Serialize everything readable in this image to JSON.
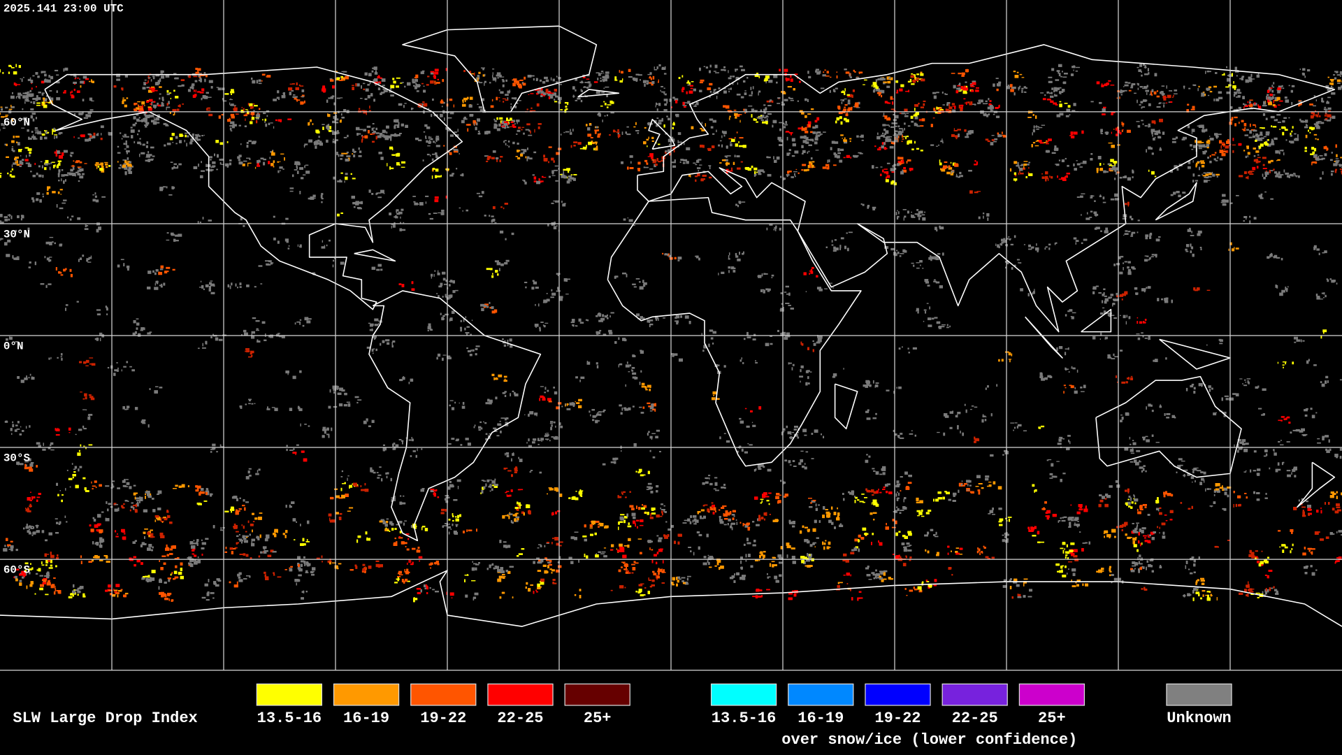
{
  "timestamp": "2025.141 23:00 UTC",
  "latitude_labels": [
    "60°N",
    "30°N",
    "0°N",
    "30°S",
    "60°S"
  ],
  "legend": {
    "title": "SLW Large Drop Index",
    "groups": [
      {
        "items": [
          {
            "label": "13.5-16",
            "color": "#ffff00"
          },
          {
            "label": "16-19",
            "color": "#ff9900"
          },
          {
            "label": "19-22",
            "color": "#ff5500"
          },
          {
            "label": "22-25",
            "color": "#ff0000"
          },
          {
            "label": "25+",
            "color": "#660000"
          }
        ]
      },
      {
        "items": [
          {
            "label": "13.5-16",
            "color": "#00ffff"
          },
          {
            "label": "16-19",
            "color": "#0088ff"
          },
          {
            "label": "19-22",
            "color": "#0000ff"
          },
          {
            "label": "22-25",
            "color": "#7722dd"
          },
          {
            "label": "25+",
            "color": "#cc00cc"
          }
        ],
        "note": "over snow/ice (lower confidence)"
      }
    ],
    "unknown": {
      "label": "Unknown",
      "color": "#808080"
    }
  }
}
